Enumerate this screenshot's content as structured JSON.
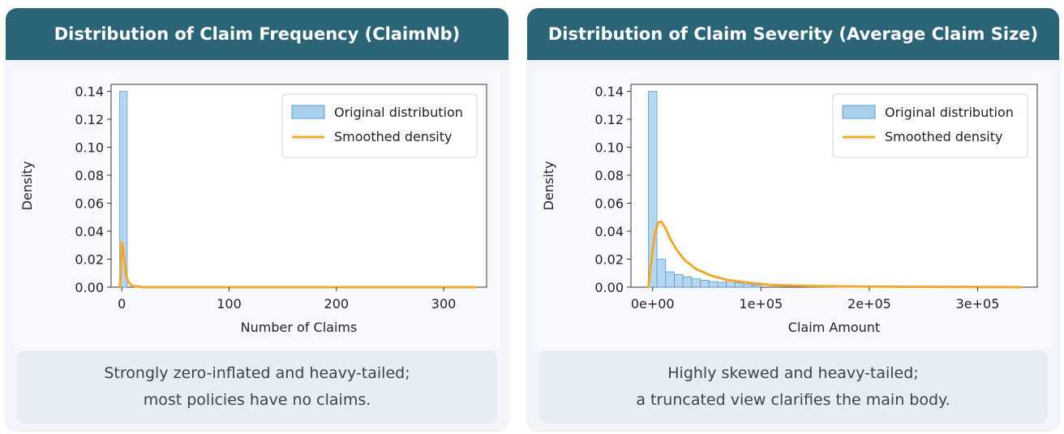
{
  "colors": {
    "header_bg": "#2a6476",
    "bar_fill": "#a8cfec",
    "bar_stroke": "#5b9bd0",
    "density_line": "#f0a830"
  },
  "panels": [
    {
      "title": "Distribution of Claim Frequency (ClaimNb)",
      "caption_line1": "Strongly zero-inflated and heavy-tailed;",
      "caption_line2": "most policies have no claims."
    },
    {
      "title": "Distribution of Claim Severity (Average Claim Size)",
      "caption_line1": "Highly skewed and heavy-tailed;",
      "caption_line2": "a truncated view clarifies the main body."
    }
  ],
  "chart_data": [
    {
      "type": "bar",
      "title": "Distribution of Claim Frequency (ClaimNb)",
      "xlabel": "Number of Claims",
      "ylabel": "Density",
      "xlim": [
        -10,
        340
      ],
      "ylim": [
        0,
        0.145
      ],
      "xticks": [
        0,
        100,
        200,
        300
      ],
      "xtick_labels": [
        "0",
        "100",
        "200",
        "300"
      ],
      "yticks": [
        0,
        0.02,
        0.04,
        0.06,
        0.08,
        0.1,
        0.12,
        0.14
      ],
      "ytick_labels": [
        "0.00",
        "0.02",
        "0.04",
        "0.06",
        "0.08",
        "0.10",
        "0.12",
        "0.14"
      ],
      "legend": [
        "Original distribution",
        "Smoothed density"
      ],
      "legend_position": "top-right",
      "grid": false,
      "bins": [
        {
          "x0": -2,
          "x1": 5,
          "value": 0.14
        }
      ],
      "density": {
        "x": [
          -2,
          -1,
          0,
          1,
          2,
          3,
          4,
          5,
          6,
          8,
          10,
          14,
          20,
          40,
          100,
          200,
          300,
          330
        ],
        "y": [
          0.0,
          0.01,
          0.032,
          0.029,
          0.022,
          0.015,
          0.009,
          0.006,
          0.004,
          0.002,
          0.001,
          0.0005,
          0.0,
          0.0,
          0.0,
          0.0,
          0.0,
          0.0
        ]
      }
    },
    {
      "type": "bar",
      "title": "Distribution of Claim Severity (Average Claim Size)",
      "xlabel": "Claim Amount",
      "ylabel": "Density",
      "xlim": [
        -20000,
        355000
      ],
      "ylim": [
        0,
        0.145
      ],
      "xticks": [
        0,
        100000,
        200000,
        300000
      ],
      "xtick_labels": [
        "0e+00",
        "1e+05",
        "2e+05",
        "3e+05"
      ],
      "yticks": [
        0,
        0.02,
        0.04,
        0.06,
        0.08,
        0.1,
        0.12,
        0.14
      ],
      "ytick_labels": [
        "0.00",
        "0.02",
        "0.04",
        "0.06",
        "0.08",
        "0.10",
        "0.12",
        "0.14"
      ],
      "legend": [
        "Original distribution",
        "Smoothed density"
      ],
      "legend_position": "top-right",
      "grid": false,
      "bins": [
        {
          "x0": -4000,
          "x1": 4000,
          "value": 0.14
        },
        {
          "x0": 4000,
          "x1": 12000,
          "value": 0.02
        },
        {
          "x0": 12000,
          "x1": 20000,
          "value": 0.011
        },
        {
          "x0": 20000,
          "x1": 28000,
          "value": 0.009
        },
        {
          "x0": 28000,
          "x1": 36000,
          "value": 0.0075
        },
        {
          "x0": 36000,
          "x1": 44000,
          "value": 0.006
        },
        {
          "x0": 44000,
          "x1": 52000,
          "value": 0.005
        },
        {
          "x0": 52000,
          "x1": 60000,
          "value": 0.004
        },
        {
          "x0": 60000,
          "x1": 68000,
          "value": 0.0035
        },
        {
          "x0": 68000,
          "x1": 76000,
          "value": 0.005
        },
        {
          "x0": 76000,
          "x1": 84000,
          "value": 0.003
        },
        {
          "x0": 84000,
          "x1": 92000,
          "value": 0.002
        },
        {
          "x0": 92000,
          "x1": 100000,
          "value": 0.0015
        }
      ],
      "density": {
        "x": [
          -4000,
          -1000,
          2000,
          5000,
          8000,
          12000,
          16000,
          22000,
          30000,
          40000,
          55000,
          70000,
          90000,
          110000,
          150000,
          200000,
          250000,
          300000,
          340000
        ],
        "y": [
          0.0,
          0.02,
          0.038,
          0.046,
          0.047,
          0.042,
          0.035,
          0.027,
          0.019,
          0.013,
          0.008,
          0.005,
          0.003,
          0.0015,
          0.0008,
          0.0004,
          0.0003,
          0.0002,
          0.0
        ]
      }
    }
  ]
}
